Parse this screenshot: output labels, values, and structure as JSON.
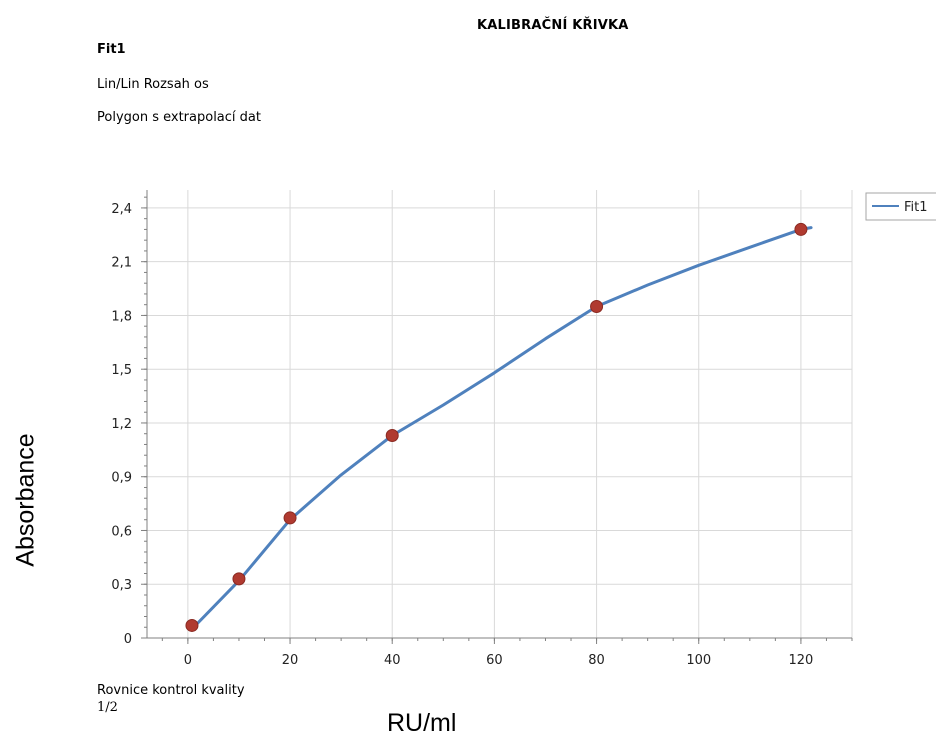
{
  "report": {
    "title": "KALIBRAČNÍ KŘIVKA",
    "fit_name": "Fit1",
    "axis_range_note": "Lin/Lin Rozsah os",
    "method_note": "Polygon s extrapolací dat",
    "footer_label": "Rovnice kontrol kvality",
    "page_counter": "1/2"
  },
  "colors": {
    "line": "#4f81bd",
    "marker": "#b03a30",
    "marker_edge": "#8a2a22",
    "grid": "#d9d9d9",
    "axis": "#808080"
  },
  "chart_data": {
    "type": "line",
    "title": "",
    "xlabel": "RU/ml",
    "ylabel": "Absorbance",
    "xlim": [
      -8,
      130
    ],
    "ylim": [
      0,
      2.5
    ],
    "x_ticks": [
      0,
      20,
      40,
      60,
      80,
      100,
      120
    ],
    "y_ticks": [
      0,
      0.3,
      0.6,
      0.9,
      1.2,
      1.5,
      1.8,
      2.1,
      2.4
    ],
    "x_tick_labels": [
      "0",
      "20",
      "40",
      "60",
      "80",
      "100",
      "120"
    ],
    "y_tick_labels": [
      "0",
      "0,3",
      "0,6",
      "0,9",
      "1,2",
      "1,5",
      "1,8",
      "2,1",
      "2,4"
    ],
    "grid": true,
    "legend_position": "top-right outside",
    "series": [
      {
        "name": "Fit1",
        "line_x": [
          0.8,
          10,
          20,
          30,
          40,
          50,
          60,
          70,
          80,
          90,
          100,
          110,
          120,
          122
        ],
        "line_y": [
          0.05,
          0.32,
          0.66,
          0.91,
          1.13,
          1.3,
          1.48,
          1.67,
          1.85,
          1.97,
          2.08,
          2.18,
          2.28,
          2.29
        ],
        "points_x": [
          0.8,
          10,
          20,
          40,
          80,
          120
        ],
        "points_y": [
          0.07,
          0.33,
          0.67,
          1.13,
          1.85,
          2.28
        ]
      }
    ]
  }
}
